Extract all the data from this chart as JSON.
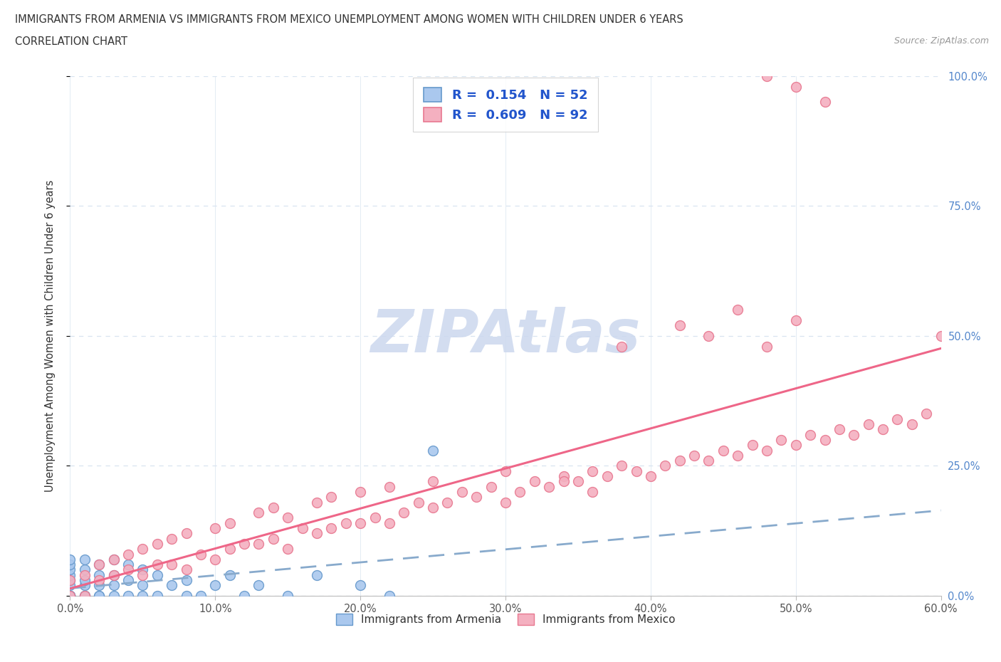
{
  "title": "IMMIGRANTS FROM ARMENIA VS IMMIGRANTS FROM MEXICO UNEMPLOYMENT AMONG WOMEN WITH CHILDREN UNDER 6 YEARS",
  "subtitle": "CORRELATION CHART",
  "source": "Source: ZipAtlas.com",
  "ylabel": "Unemployment Among Women with Children Under 6 years",
  "xlim": [
    0.0,
    0.6
  ],
  "ylim": [
    0.0,
    1.0
  ],
  "xtick_labels": [
    "0.0%",
    "10.0%",
    "20.0%",
    "30.0%",
    "40.0%",
    "50.0%",
    "60.0%"
  ],
  "xtick_values": [
    0.0,
    0.1,
    0.2,
    0.3,
    0.4,
    0.5,
    0.6
  ],
  "ytick_labels": [
    "0.0%",
    "25.0%",
    "50.0%",
    "75.0%",
    "100.0%"
  ],
  "ytick_values": [
    0.0,
    0.25,
    0.5,
    0.75,
    1.0
  ],
  "legend_R_armenia": "0.154",
  "legend_N_armenia": "52",
  "legend_R_mexico": "0.609",
  "legend_N_mexico": "92",
  "armenia_face_color": "#aac8ee",
  "armenia_edge_color": "#6699cc",
  "mexico_face_color": "#f4b0c0",
  "mexico_edge_color": "#e87890",
  "armenia_line_color": "#88aacc",
  "mexico_line_color": "#ee6688",
  "watermark_color": "#ccd8ee",
  "grid_color": "#d8e4f0",
  "bg_color": "#ffffff",
  "title_color": "#333333",
  "source_color": "#999999",
  "ytick_color": "#5588cc",
  "xtick_color": "#555555",
  "armenia_x": [
    0.0,
    0.0,
    0.0,
    0.0,
    0.0,
    0.0,
    0.0,
    0.0,
    0.0,
    0.0,
    0.0,
    0.0,
    0.0,
    0.0,
    0.0,
    0.01,
    0.01,
    0.01,
    0.01,
    0.01,
    0.01,
    0.01,
    0.02,
    0.02,
    0.02,
    0.02,
    0.02,
    0.03,
    0.03,
    0.03,
    0.03,
    0.04,
    0.04,
    0.04,
    0.05,
    0.05,
    0.05,
    0.06,
    0.06,
    0.07,
    0.08,
    0.08,
    0.09,
    0.1,
    0.11,
    0.12,
    0.13,
    0.15,
    0.17,
    0.2,
    0.22,
    0.25
  ],
  "armenia_y": [
    0.0,
    0.0,
    0.0,
    0.0,
    0.0,
    0.0,
    0.0,
    0.0,
    0.0,
    0.02,
    0.03,
    0.04,
    0.05,
    0.06,
    0.07,
    0.0,
    0.0,
    0.0,
    0.02,
    0.03,
    0.05,
    0.07,
    0.0,
    0.0,
    0.02,
    0.04,
    0.06,
    0.0,
    0.02,
    0.04,
    0.07,
    0.0,
    0.03,
    0.06,
    0.0,
    0.02,
    0.05,
    0.0,
    0.04,
    0.02,
    0.0,
    0.03,
    0.0,
    0.02,
    0.04,
    0.0,
    0.02,
    0.0,
    0.04,
    0.02,
    0.0,
    0.28
  ],
  "mexico_x": [
    0.0,
    0.0,
    0.01,
    0.01,
    0.02,
    0.02,
    0.03,
    0.03,
    0.04,
    0.04,
    0.05,
    0.05,
    0.06,
    0.06,
    0.07,
    0.07,
    0.08,
    0.08,
    0.09,
    0.1,
    0.1,
    0.11,
    0.11,
    0.12,
    0.13,
    0.13,
    0.14,
    0.14,
    0.15,
    0.15,
    0.16,
    0.17,
    0.17,
    0.18,
    0.18,
    0.19,
    0.2,
    0.2,
    0.21,
    0.22,
    0.22,
    0.23,
    0.24,
    0.25,
    0.25,
    0.26,
    0.27,
    0.28,
    0.29,
    0.3,
    0.3,
    0.31,
    0.32,
    0.33,
    0.34,
    0.35,
    0.36,
    0.37,
    0.38,
    0.39,
    0.4,
    0.41,
    0.42,
    0.43,
    0.44,
    0.45,
    0.46,
    0.47,
    0.48,
    0.49,
    0.5,
    0.51,
    0.52,
    0.53,
    0.54,
    0.55,
    0.56,
    0.57,
    0.58,
    0.59,
    0.6,
    0.38,
    0.42,
    0.44,
    0.46,
    0.48,
    0.5,
    0.34,
    0.36,
    0.48,
    0.5,
    0.52
  ],
  "mexico_y": [
    0.0,
    0.03,
    0.0,
    0.04,
    0.03,
    0.06,
    0.04,
    0.07,
    0.05,
    0.08,
    0.04,
    0.09,
    0.06,
    0.1,
    0.06,
    0.11,
    0.05,
    0.12,
    0.08,
    0.07,
    0.13,
    0.09,
    0.14,
    0.1,
    0.1,
    0.16,
    0.11,
    0.17,
    0.09,
    0.15,
    0.13,
    0.12,
    0.18,
    0.13,
    0.19,
    0.14,
    0.14,
    0.2,
    0.15,
    0.14,
    0.21,
    0.16,
    0.18,
    0.17,
    0.22,
    0.18,
    0.2,
    0.19,
    0.21,
    0.18,
    0.24,
    0.2,
    0.22,
    0.21,
    0.23,
    0.22,
    0.24,
    0.23,
    0.25,
    0.24,
    0.23,
    0.25,
    0.26,
    0.27,
    0.26,
    0.28,
    0.27,
    0.29,
    0.28,
    0.3,
    0.29,
    0.31,
    0.3,
    0.32,
    0.31,
    0.33,
    0.32,
    0.34,
    0.33,
    0.35,
    0.5,
    0.48,
    0.52,
    0.5,
    0.55,
    0.48,
    0.53,
    0.22,
    0.2,
    1.0,
    0.98,
    0.95
  ]
}
